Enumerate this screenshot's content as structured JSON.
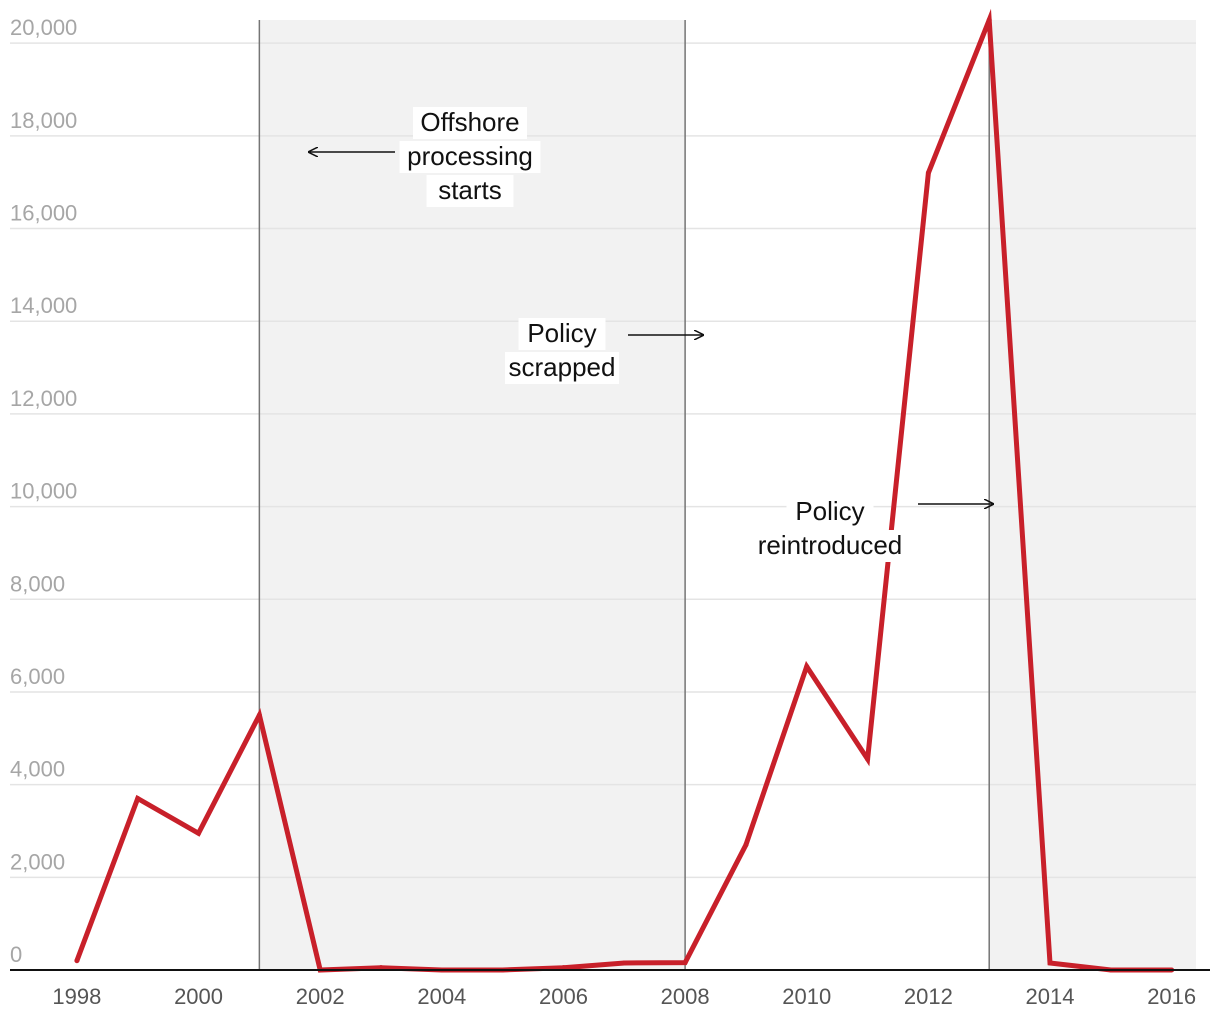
{
  "chart_data": {
    "type": "line",
    "title": "",
    "xlabel": "",
    "ylabel": "",
    "xlim": [
      1996.9,
      2016.4
    ],
    "ylim": [
      0,
      20500
    ],
    "y_ticks": [
      0,
      2000,
      4000,
      6000,
      8000,
      10000,
      12000,
      14000,
      16000,
      18000,
      20000
    ],
    "y_tick_labels": [
      "0",
      "2,000",
      "4,000",
      "6,000",
      "8,000",
      "10,000",
      "12,000",
      "14,000",
      "16,000",
      "18,000",
      "20,000"
    ],
    "x_ticks": [
      1998,
      2000,
      2002,
      2004,
      2006,
      2008,
      2010,
      2012,
      2014,
      2016
    ],
    "x_tick_labels": [
      "1998",
      "2000",
      "2002",
      "2004",
      "2006",
      "2008",
      "2010",
      "2012",
      "2014",
      "2016"
    ],
    "grid": true,
    "legend": "none",
    "series": [
      {
        "color": "#c8202a",
        "x": [
          1998,
          1999,
          2000,
          2001,
          2002,
          2003,
          2004,
          2005,
          2006,
          2007,
          2008,
          2009,
          2010,
          2011,
          2012,
          2013,
          2014,
          2015,
          2016
        ],
        "values": [
          200,
          3700,
          2950,
          5500,
          0,
          50,
          0,
          0,
          50,
          150,
          160,
          2700,
          6550,
          4550,
          17200,
          20500,
          150,
          0,
          0
        ]
      }
    ],
    "shaded_periods": [
      {
        "start": 2001,
        "end": 2008,
        "color": "#f2f2f2"
      },
      {
        "start": 2013,
        "end": 2016.4,
        "color": "#f2f2f2"
      }
    ],
    "annotations": [
      {
        "text_lines": [
          "Offshore",
          "processing",
          "starts"
        ],
        "year": 2001,
        "arrow": "left"
      },
      {
        "text_lines": [
          "Policy",
          "scrapped"
        ],
        "year": 2008,
        "arrow": "right"
      },
      {
        "text_lines": [
          "Policy",
          "reintroduced"
        ],
        "year": 2013,
        "arrow": "right"
      }
    ]
  }
}
